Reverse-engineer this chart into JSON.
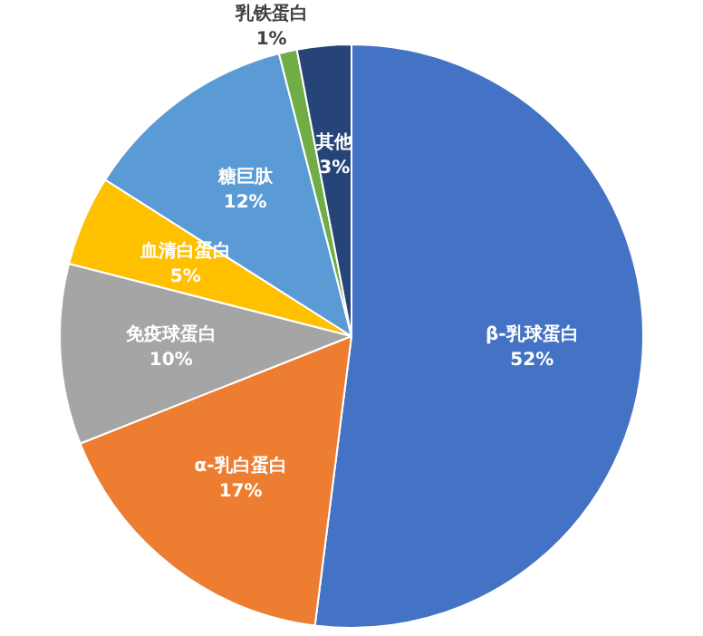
{
  "chart_data": {
    "type": "pie",
    "categories": [
      "β-乳球蛋白",
      "α-乳白蛋白",
      "免疫球蛋白",
      "血清白蛋白",
      "糖巨肽",
      "乳铁蛋白",
      "其他"
    ],
    "values": [
      52,
      17,
      10,
      5,
      12,
      1,
      3
    ],
    "colors": [
      "#4472c4",
      "#ed7d31",
      "#a5a5a5",
      "#ffc000",
      "#5b9bd5",
      "#70ad47",
      "#264478"
    ],
    "value_labels": [
      "52%",
      "17%",
      "10%",
      "5%",
      "12%",
      "1%",
      "3%"
    ],
    "legend": false
  }
}
